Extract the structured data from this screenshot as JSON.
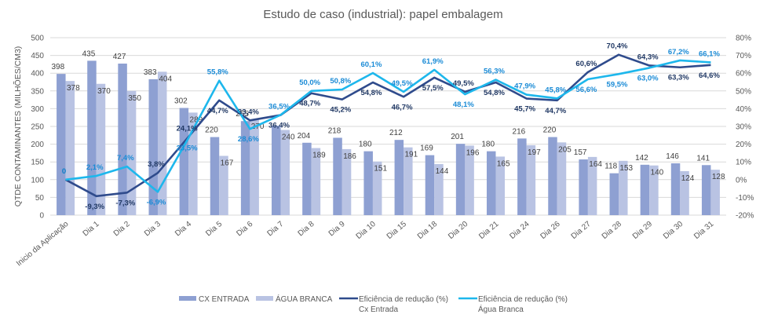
{
  "chart_data": {
    "type": "bar",
    "title": "Estudo de caso (industrial): papel embalagem",
    "xlabel": "",
    "ylabel": "QTDE CONTAMINANTES (MILHÕES/CM3)",
    "ylim": [
      0,
      500
    ],
    "y_ticks": [
      "0",
      "50",
      "100",
      "150",
      "200",
      "250",
      "300",
      "350",
      "400",
      "450",
      "500"
    ],
    "y2lim": [
      -20,
      80
    ],
    "y2_ticks": [
      "-20%",
      "-10%",
      "0%",
      "10%",
      "20%",
      "30%",
      "40%",
      "50%",
      "60%",
      "70%",
      "80%"
    ],
    "grid": true,
    "legend_position": "bottom",
    "categories": [
      "Inicio da Aplicação",
      "Dia 1",
      "Dia 2",
      "Dia 3",
      "Dia 4",
      "Dia 5",
      "Dia 6",
      "Dia 7",
      "Dia 8",
      "Dia 9",
      "Dia 10",
      "Dia 15",
      "Dia 18",
      "Dia 20",
      "Dia 21",
      "Dia 24",
      "Dia 26",
      "Dia 27",
      "Dia 28",
      "Dia 29",
      "Dia 30",
      "Dia 31"
    ],
    "series": [
      {
        "name": "CX ENTRADA",
        "type": "bar",
        "axis": "left",
        "color": "#8EA0D2",
        "values": [
          398,
          435,
          427,
          383,
          302,
          220,
          265,
          252,
          204,
          218,
          180,
          212,
          169,
          201,
          180,
          216,
          220,
          157,
          118,
          142,
          146,
          141
        ],
        "labels": [
          "398",
          "435",
          "427",
          "383",
          "302",
          "220",
          "265",
          "",
          "204",
          "218",
          "180",
          "212",
          "169",
          "201",
          "180",
          "216",
          "220",
          "157",
          "118",
          "142",
          "146",
          "141"
        ]
      },
      {
        "name": "ÁGUA BRANCA",
        "type": "bar",
        "axis": "left",
        "color": "#B9C3E3",
        "values": [
          378,
          370,
          350,
          404,
          289,
          167,
          270,
          240,
          189,
          186,
          151,
          191,
          144,
          196,
          165,
          197,
          205,
          164,
          153,
          140,
          124,
          128
        ],
        "labels": [
          "378",
          "370",
          "350",
          "404",
          "289",
          "167",
          "270",
          "240",
          "189",
          "186",
          "151",
          "191",
          "144",
          "196",
          "165",
          "197",
          "205",
          "164",
          "153",
          "140",
          "124",
          "128"
        ]
      },
      {
        "name": "Eficiência de redução (%) Cx Entrada",
        "legend_lines": [
          "Eficiência de redução (%)",
          "Cx Entrada"
        ],
        "type": "line",
        "axis": "right",
        "color": "#2F4B8C",
        "values": [
          0,
          -9.3,
          -7.3,
          3.8,
          24.1,
          44.7,
          33.4,
          36.4,
          48.7,
          45.2,
          54.8,
          46.7,
          57.5,
          49.5,
          54.8,
          45.7,
          44.7,
          60.6,
          70.4,
          64.3,
          63.3,
          64.6
        ],
        "labels": [
          "0",
          "-9,3%",
          "-7,3%",
          "3,8%",
          "24,1%",
          "44,7%",
          "33,4%",
          "36,4%",
          "48,7%",
          "45,2%",
          "54,8%",
          "46,7%",
          "57,5%",
          "49,5%",
          "54,8%",
          "45,7%",
          "44,7%",
          "60,6%",
          "70,4%",
          "64,3%",
          "63,3%",
          "64,6%"
        ]
      },
      {
        "name": "Eficiência de redução (%) Água Branca",
        "legend_lines": [
          "Eficiência de redução (%)",
          "Água Branca"
        ],
        "type": "line",
        "axis": "right",
        "color": "#1DB7EC",
        "values": [
          0,
          2.1,
          7.4,
          -6.9,
          23.5,
          55.8,
          28.6,
          36.5,
          50.0,
          50.8,
          60.1,
          49.5,
          61.9,
          48.1,
          56.3,
          47.9,
          45.8,
          56.6,
          59.5,
          63.0,
          67.2,
          66.1
        ],
        "labels": [
          "0",
          "2,1%",
          "7,4%",
          "-6,9%",
          "23,5%",
          "55,8%",
          "28,6%",
          "36,5%",
          "50,0%",
          "50,8%",
          "60,1%",
          "49,5%",
          "61,9%",
          "48,1%",
          "56,3%",
          "47,9%",
          "45,8%",
          "56,6%",
          "59,5%",
          "63,0%",
          "67,2%",
          "66,1%"
        ]
      }
    ]
  }
}
